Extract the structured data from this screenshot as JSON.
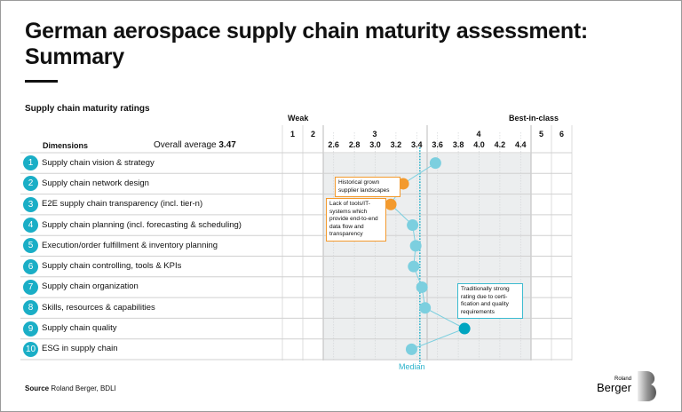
{
  "title": "German aerospace supply chain maturity assessment: Summary",
  "subtitle": "Supply chain maturity ratings",
  "source_label": "Source",
  "source_text": "Roland Berger, BDLI",
  "logo_text": [
    "Roland",
    "Berger"
  ],
  "colors": {
    "highlight_low": "#f39a2e",
    "highlight_high": "#00a5c0",
    "normal": "#7ccfdf",
    "median": "#2cb3cb"
  },
  "chart_data": {
    "type": "scatter",
    "scale_labels": {
      "weak": "Weak",
      "best": "Best-in-class"
    },
    "header_dimensions": "Dimensions",
    "overall_average_label": "Overall average",
    "overall_average": "3.47",
    "major_ticks": [
      "1",
      "2",
      "3",
      "4",
      "5",
      "6"
    ],
    "minor_ticks": [
      "2.6",
      "2.8",
      "3.0",
      "3.2",
      "3.4",
      "3.6",
      "3.8",
      "4.0",
      "4.2",
      "4.4"
    ],
    "xlim_zoomed": [
      2.5,
      4.5
    ],
    "median": 3.43,
    "median_label": "Median",
    "categories": [
      "Supply chain vision & strategy",
      "Supply chain network design",
      "E2E supply chain transparency (incl. tier-n)",
      "Supply chain planning (incl. forecasting & scheduling)",
      "Execution/order fulfillment & inventory planning",
      "Supply chain controlling, tools & KPIs",
      "Supply chain organization",
      "Skills, resources & capabilities",
      "Supply chain quality",
      "ESG in supply chain"
    ],
    "values": [
      3.58,
      3.27,
      3.15,
      3.36,
      3.39,
      3.37,
      3.45,
      3.48,
      3.86,
      3.35
    ],
    "highlight": [
      "normal",
      "low",
      "low",
      "normal",
      "normal",
      "normal",
      "normal",
      "normal",
      "high",
      "normal"
    ],
    "annotations": [
      {
        "row": 2,
        "text": "Historical grown supplier landscapes"
      },
      {
        "row": 3,
        "text": "Lack of tools/IT-systems which provide end-to-end data flow and transparency"
      },
      {
        "row": 9,
        "text": "Traditionally strong rating due to certi-fication and quality requirements"
      }
    ]
  }
}
